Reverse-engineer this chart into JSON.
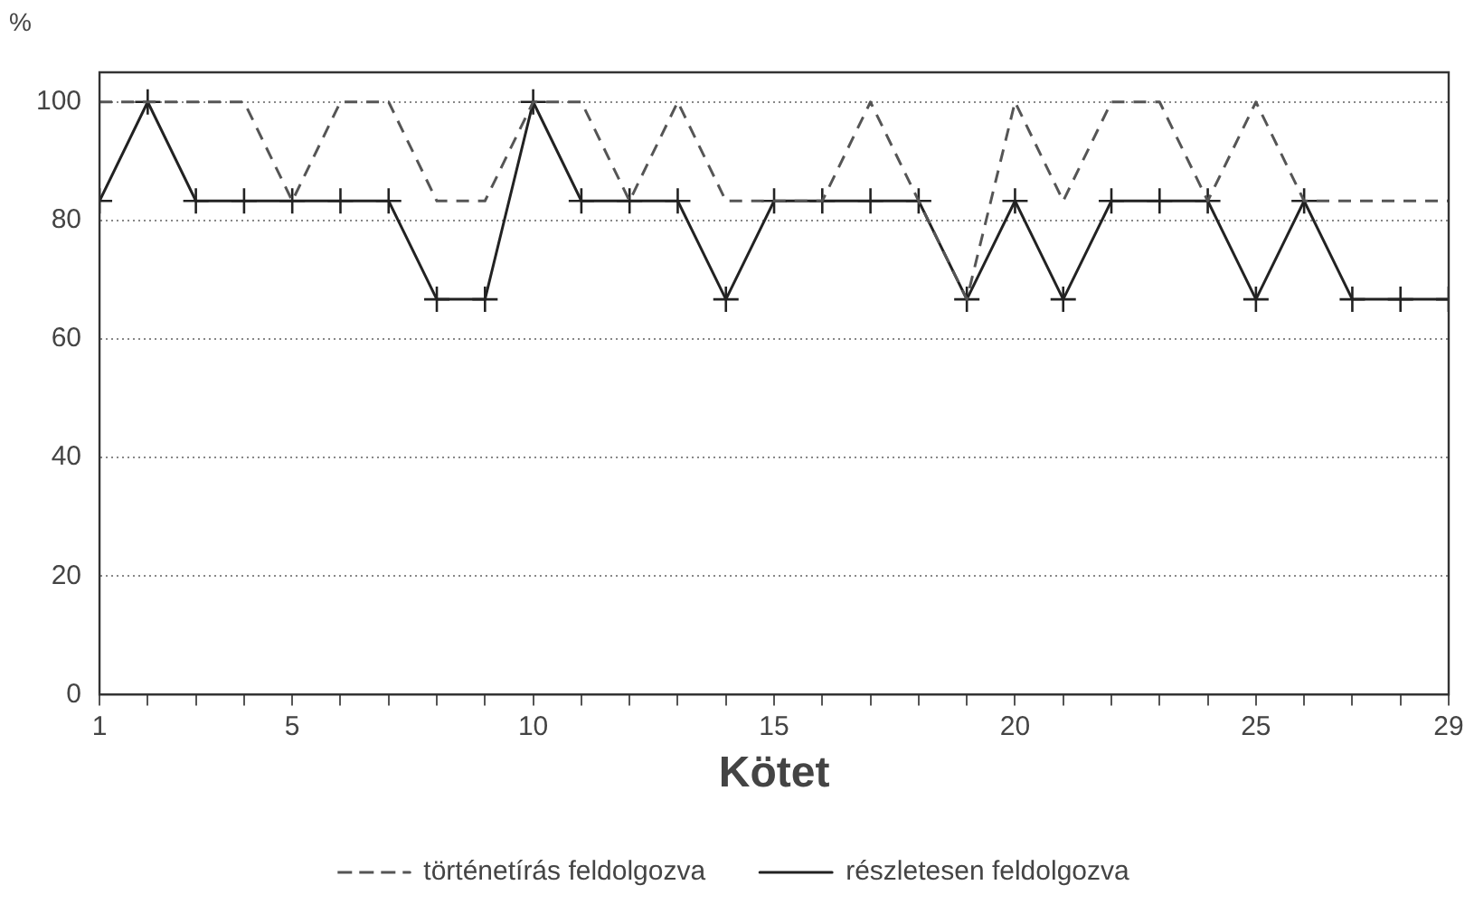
{
  "chart_data": {
    "type": "line",
    "ylabel": "%",
    "xlabel": "Kötet",
    "x": [
      1,
      2,
      3,
      4,
      5,
      6,
      7,
      8,
      9,
      10,
      11,
      12,
      13,
      14,
      15,
      16,
      17,
      18,
      19,
      20,
      21,
      22,
      23,
      24,
      25,
      26,
      27,
      28,
      29
    ],
    "series": [
      {
        "name": "történetírás feldolgozva",
        "color": "#555555",
        "line_style": "dashed",
        "marker": "none",
        "values": [
          100,
          100,
          100,
          100,
          83.3,
          100,
          100,
          83.3,
          83.3,
          100,
          100,
          83.3,
          100,
          83.3,
          83.3,
          83.3,
          100,
          83.3,
          66.7,
          100,
          83.3,
          100,
          100,
          83.3,
          100,
          83.3,
          83.3,
          83.3,
          83.3
        ]
      },
      {
        "name": "részletesen feldolgozva",
        "color": "#222222",
        "line_style": "solid",
        "marker": "cross",
        "values": [
          83.3,
          100,
          83.3,
          83.3,
          83.3,
          83.3,
          83.3,
          66.7,
          66.7,
          100,
          83.3,
          83.3,
          83.3,
          66.7,
          83.3,
          83.3,
          83.3,
          83.3,
          66.7,
          83.3,
          66.7,
          83.3,
          83.3,
          83.3,
          66.7,
          83.3,
          66.7,
          66.7,
          66.7
        ]
      }
    ],
    "xlim": [
      1,
      29
    ],
    "xticks": [
      1,
      {
        "value": 2,
        "label": null
      },
      {
        "value": 3,
        "label": null
      },
      {
        "value": 4,
        "label": null
      },
      5,
      {
        "value": 6,
        "label": null
      },
      {
        "value": 7,
        "label": null
      },
      {
        "value": 8,
        "label": null
      },
      {
        "value": 9,
        "label": null
      },
      10,
      {
        "value": 11,
        "label": null
      },
      {
        "value": 12,
        "label": null
      },
      {
        "value": 13,
        "label": null
      },
      {
        "value": 14,
        "label": null
      },
      15,
      {
        "value": 16,
        "label": null
      },
      {
        "value": 17,
        "label": null
      },
      {
        "value": 18,
        "label": null
      },
      {
        "value": 19,
        "label": null
      },
      20,
      {
        "value": 21,
        "label": null
      },
      {
        "value": 22,
        "label": null
      },
      {
        "value": 23,
        "label": null
      },
      {
        "value": 24,
        "label": null
      },
      25,
      {
        "value": 26,
        "label": null
      },
      {
        "value": 27,
        "label": null
      },
      {
        "value": 28,
        "label": null
      },
      29
    ],
    "ylim": [
      0,
      105
    ],
    "yticks": [
      0,
      20,
      40,
      60,
      80,
      100
    ],
    "grid": "y",
    "legend": "bottom"
  }
}
